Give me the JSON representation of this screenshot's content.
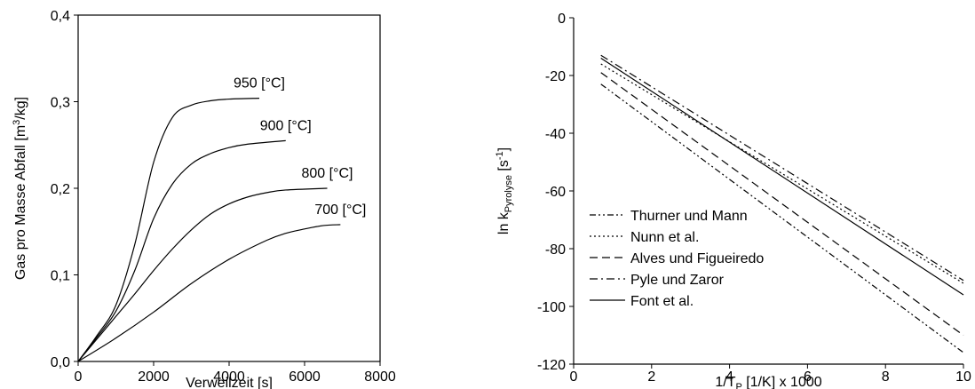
{
  "chart_data": [
    {
      "type": "line",
      "xlabel": "Verweilzeit [s]",
      "ylabel_main": "Gas pro Masse Abfall [m",
      "ylabel_sup": "3",
      "ylabel_tail": "/kg]",
      "xlim": [
        0,
        8000
      ],
      "ylim": [
        0,
        0.4
      ],
      "xticks": [
        0,
        2000,
        4000,
        6000,
        8000
      ],
      "xtick_labels": [
        "0",
        "2000",
        "4000",
        "6000",
        "8000"
      ],
      "yticks": [
        0,
        0.1,
        0.2,
        0.3,
        0.4
      ],
      "ytick_labels": [
        "0,0",
        "0,1",
        "0,2",
        "0,3",
        "0,4"
      ],
      "grid": false,
      "series": [
        {
          "name": "950 [°C]",
          "x": [
            0,
            500,
            1000,
            1500,
            2000,
            2500,
            3000,
            3500,
            4000,
            4800
          ],
          "y": [
            0,
            0.03,
            0.065,
            0.135,
            0.23,
            0.282,
            0.296,
            0.301,
            0.303,
            0.304
          ]
        },
        {
          "name": "900 [°C]",
          "x": [
            0,
            500,
            1000,
            1500,
            2000,
            2500,
            3000,
            3500,
            4000,
            4500,
            5500
          ],
          "y": [
            0,
            0.028,
            0.058,
            0.105,
            0.165,
            0.205,
            0.228,
            0.24,
            0.247,
            0.251,
            0.255
          ]
        },
        {
          "name": "800 [°C]",
          "x": [
            0,
            500,
            1000,
            1500,
            2000,
            2500,
            3000,
            3500,
            4000,
            4500,
            5000,
            5500,
            6600
          ],
          "y": [
            0,
            0.026,
            0.052,
            0.078,
            0.105,
            0.13,
            0.152,
            0.17,
            0.182,
            0.19,
            0.195,
            0.198,
            0.2
          ]
        },
        {
          "name": "700 [°C]",
          "x": [
            0,
            1000,
            2000,
            3000,
            4000,
            5000,
            5500,
            6000,
            6500,
            6950
          ],
          "y": [
            0,
            0.027,
            0.057,
            0.09,
            0.118,
            0.14,
            0.148,
            0.153,
            0.157,
            0.158
          ]
        }
      ]
    },
    {
      "type": "line",
      "xlabel_pre": "1/T",
      "xlabel_sub": "P",
      "xlabel_post": " [1/K] x 1000",
      "ylabel_pre": "ln k",
      "ylabel_sub": "Pyrolyse",
      "ylabel_mid": " [s",
      "ylabel_sup": "-1",
      "ylabel_post": "]",
      "xlim": [
        0,
        10
      ],
      "ylim": [
        -120,
        0
      ],
      "xticks": [
        0,
        2,
        4,
        6,
        8,
        10
      ],
      "xtick_labels": [
        "0",
        "2",
        "4",
        "6",
        "8",
        "10"
      ],
      "yticks": [
        0,
        -20,
        -40,
        -60,
        -80,
        -100,
        -120
      ],
      "ytick_labels": [
        "0",
        "-20",
        "-40",
        "-60",
        "-80",
        "-100",
        "-120"
      ],
      "grid": false,
      "legend_position": "lower-left",
      "series": [
        {
          "name": "Thurner und Mann",
          "dash": "7,3,2,3,2,3",
          "x": [
            0.7,
            10
          ],
          "y": [
            -23,
            -116
          ]
        },
        {
          "name": "Nunn et al.",
          "dash": "2,3",
          "x": [
            0.7,
            10
          ],
          "y": [
            -16,
            -92
          ]
        },
        {
          "name": "Alves und Figueiredo",
          "dash": "9,5",
          "x": [
            0.7,
            10
          ],
          "y": [
            -19,
            -110
          ]
        },
        {
          "name": "Pyle und Zaror",
          "dash": "9,4,2,4",
          "x": [
            0.7,
            10
          ],
          "y": [
            -13,
            -91
          ]
        },
        {
          "name": "Font et al.",
          "dash": "",
          "x": [
            0.7,
            10
          ],
          "y": [
            -14,
            -96
          ]
        }
      ]
    }
  ]
}
